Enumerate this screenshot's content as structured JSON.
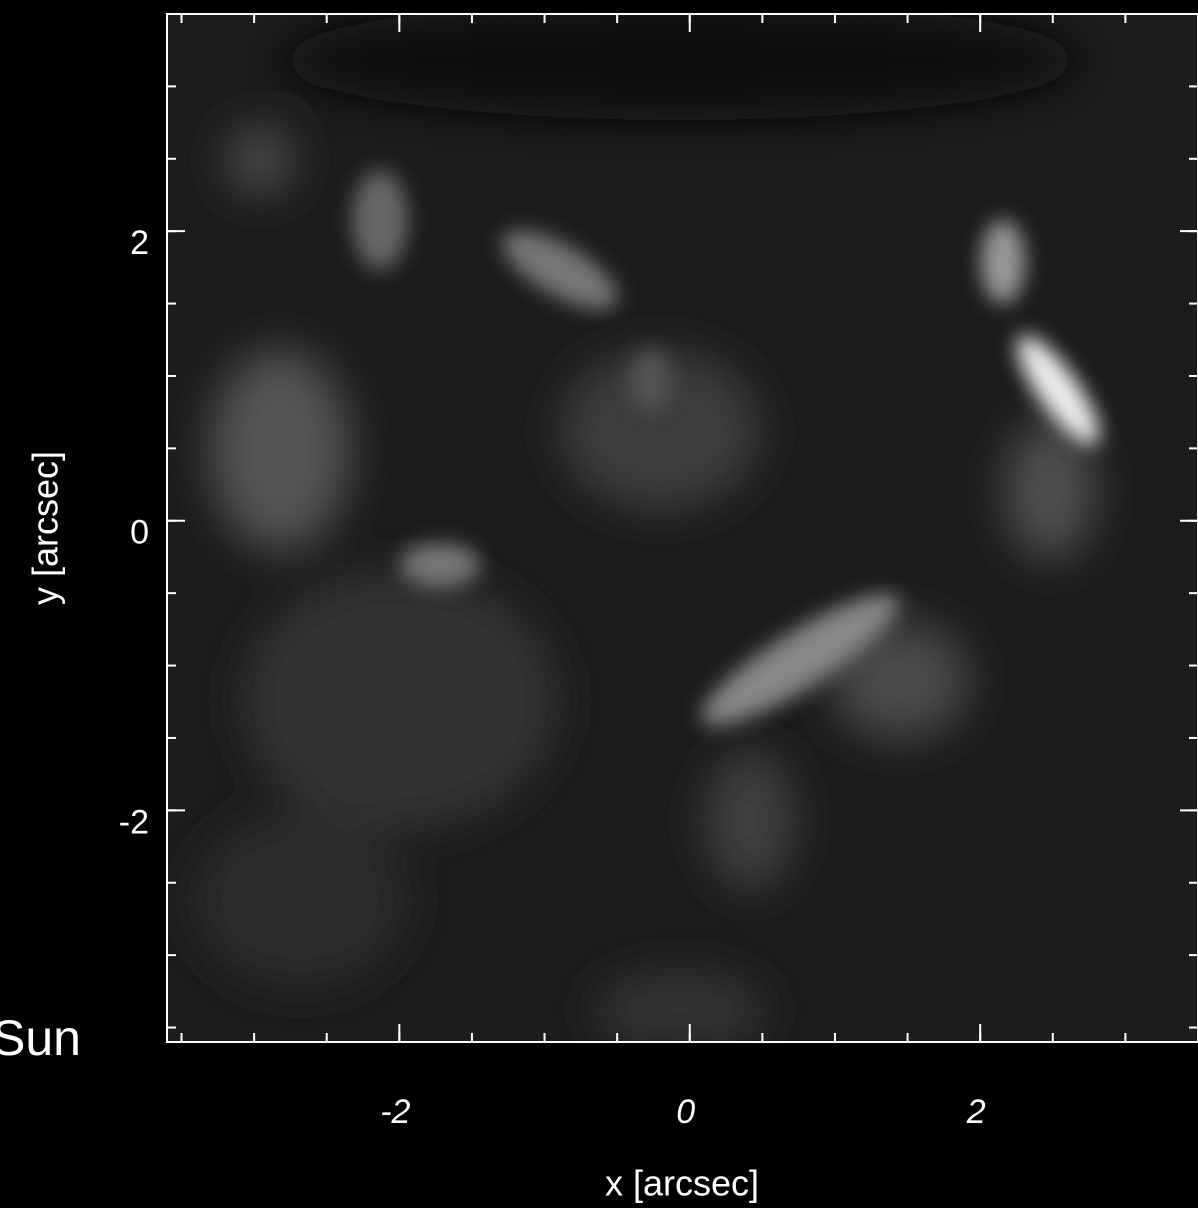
{
  "chart_data": {
    "type": "image",
    "xlabel": "x [arcsec]",
    "ylabel": "y [arcsec]",
    "annotation": "Sun",
    "xlim": [
      -3.6,
      3.5
    ],
    "ylim": [
      -3.6,
      3.5
    ],
    "xticks": [
      -2,
      0,
      2
    ],
    "yticks": [
      -2,
      0,
      2
    ],
    "minor_tick_step": 0.5
  }
}
